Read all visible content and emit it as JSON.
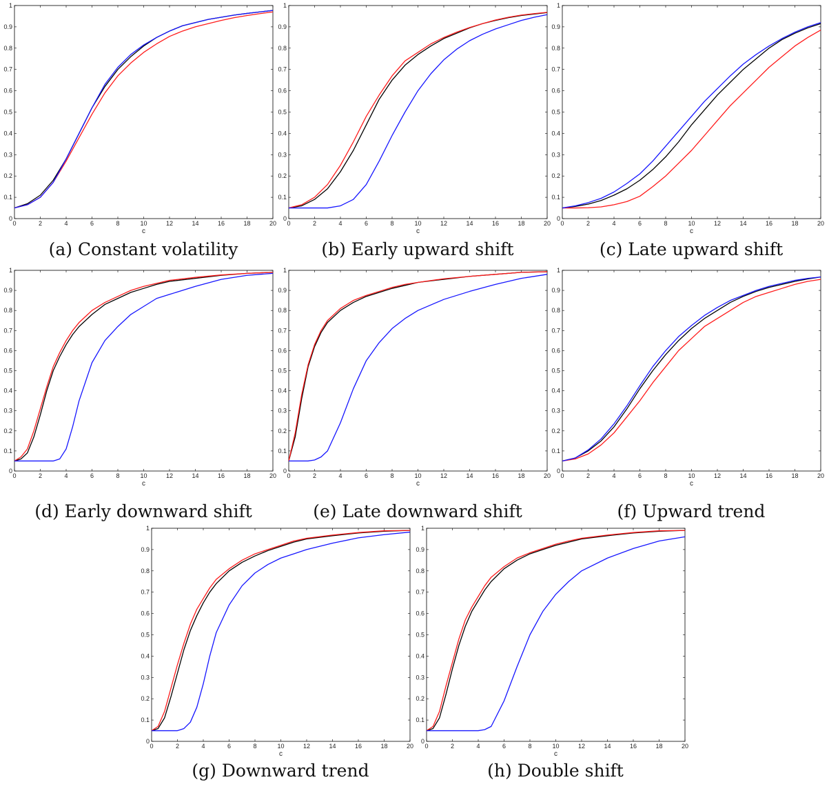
{
  "colors": {
    "black": "#000000",
    "red": "#ff1a1a",
    "blue": "#1515ff"
  },
  "chart_data": [
    {
      "type": "line",
      "panel": "a",
      "caption": "(a) Constant volatility",
      "xlabel": "c",
      "ylabel": "",
      "xlim": [
        0,
        20
      ],
      "ylim": [
        0,
        1
      ],
      "xticks": [
        "0",
        "2",
        "4",
        "6",
        "8",
        "10",
        "12",
        "14",
        "16",
        "18",
        "20"
      ],
      "yticks": [
        "0",
        "0.1",
        "0.2",
        "0.3",
        "0.4",
        "0.5",
        "0.6",
        "0.7",
        "0.8",
        "0.9",
        "1"
      ],
      "grid": false,
      "x": [
        0,
        1,
        2,
        3,
        4,
        5,
        6,
        7,
        8,
        9,
        10,
        11,
        12,
        13,
        14,
        15,
        16,
        17,
        18,
        19,
        20
      ],
      "series": [
        {
          "color": "black",
          "values": [
            0.05,
            0.07,
            0.11,
            0.18,
            0.28,
            0.4,
            0.52,
            0.62,
            0.7,
            0.76,
            0.81,
            0.85,
            0.88,
            0.905,
            0.92,
            0.935,
            0.945,
            0.955,
            0.963,
            0.97,
            0.977
          ]
        },
        {
          "color": "red",
          "values": [
            0.05,
            0.065,
            0.1,
            0.17,
            0.27,
            0.38,
            0.49,
            0.59,
            0.67,
            0.73,
            0.78,
            0.82,
            0.855,
            0.88,
            0.9,
            0.915,
            0.93,
            0.943,
            0.953,
            0.962,
            0.97
          ]
        },
        {
          "color": "blue",
          "values": [
            0.05,
            0.065,
            0.1,
            0.17,
            0.28,
            0.4,
            0.52,
            0.63,
            0.71,
            0.77,
            0.815,
            0.85,
            0.88,
            0.905,
            0.92,
            0.935,
            0.945,
            0.955,
            0.963,
            0.97,
            0.977
          ]
        }
      ]
    },
    {
      "type": "line",
      "panel": "b",
      "caption": "(b) Early upward shift",
      "xlabel": "c",
      "ylabel": "",
      "xlim": [
        0,
        20
      ],
      "ylim": [
        0,
        1
      ],
      "xticks": [
        "0",
        "2",
        "4",
        "6",
        "8",
        "10",
        "12",
        "14",
        "16",
        "18",
        "20"
      ],
      "yticks": [
        "0",
        "0.1",
        "0.2",
        "0.3",
        "0.4",
        "0.5",
        "0.6",
        "0.7",
        "0.8",
        "0.9",
        "1"
      ],
      "grid": false,
      "x": [
        0,
        1,
        2,
        3,
        4,
        5,
        6,
        7,
        8,
        9,
        10,
        11,
        12,
        13,
        14,
        15,
        16,
        17,
        18,
        19,
        20
      ],
      "series": [
        {
          "color": "black",
          "values": [
            0.05,
            0.06,
            0.09,
            0.14,
            0.22,
            0.32,
            0.44,
            0.56,
            0.65,
            0.72,
            0.77,
            0.81,
            0.845,
            0.87,
            0.895,
            0.915,
            0.93,
            0.943,
            0.953,
            0.96,
            0.967
          ]
        },
        {
          "color": "red",
          "values": [
            0.05,
            0.065,
            0.1,
            0.16,
            0.25,
            0.36,
            0.48,
            0.58,
            0.67,
            0.74,
            0.78,
            0.82,
            0.85,
            0.875,
            0.897,
            0.915,
            0.932,
            0.945,
            0.955,
            0.962,
            0.968
          ]
        },
        {
          "color": "blue",
          "values": [
            0.05,
            0.05,
            0.05,
            0.05,
            0.06,
            0.09,
            0.16,
            0.27,
            0.39,
            0.5,
            0.6,
            0.68,
            0.745,
            0.795,
            0.835,
            0.865,
            0.89,
            0.91,
            0.93,
            0.945,
            0.957
          ]
        }
      ]
    },
    {
      "type": "line",
      "panel": "c",
      "caption": "(c) Late upward shift",
      "xlabel": "c",
      "ylabel": "",
      "xlim": [
        0,
        20
      ],
      "ylim": [
        0,
        1
      ],
      "xticks": [
        "0",
        "2",
        "4",
        "6",
        "8",
        "10",
        "12",
        "14",
        "16",
        "18",
        "20"
      ],
      "yticks": [
        "0",
        "0.1",
        "0.2",
        "0.3",
        "0.4",
        "0.5",
        "0.6",
        "0.7",
        "0.8",
        "0.9",
        "1"
      ],
      "grid": false,
      "x": [
        0,
        1,
        2,
        3,
        4,
        5,
        6,
        7,
        8,
        9,
        10,
        11,
        12,
        13,
        14,
        15,
        16,
        17,
        18,
        19,
        20
      ],
      "series": [
        {
          "color": "black",
          "values": [
            0.05,
            0.057,
            0.068,
            0.085,
            0.11,
            0.14,
            0.18,
            0.23,
            0.29,
            0.36,
            0.44,
            0.51,
            0.58,
            0.64,
            0.7,
            0.75,
            0.8,
            0.84,
            0.87,
            0.895,
            0.915
          ]
        },
        {
          "color": "red",
          "values": [
            0.05,
            0.05,
            0.051,
            0.055,
            0.065,
            0.08,
            0.105,
            0.15,
            0.2,
            0.26,
            0.32,
            0.39,
            0.46,
            0.53,
            0.59,
            0.65,
            0.71,
            0.76,
            0.81,
            0.85,
            0.885
          ]
        },
        {
          "color": "blue",
          "values": [
            0.05,
            0.06,
            0.075,
            0.095,
            0.125,
            0.165,
            0.21,
            0.27,
            0.34,
            0.41,
            0.48,
            0.55,
            0.61,
            0.67,
            0.725,
            0.77,
            0.81,
            0.845,
            0.875,
            0.9,
            0.92
          ]
        }
      ]
    },
    {
      "type": "line",
      "panel": "d",
      "caption": "(d) Early downward shift",
      "xlabel": "c",
      "ylabel": "",
      "xlim": [
        0,
        20
      ],
      "ylim": [
        0,
        1
      ],
      "xticks": [
        "0",
        "2",
        "4",
        "6",
        "8",
        "10",
        "12",
        "14",
        "16",
        "18",
        "20"
      ],
      "yticks": [
        "0",
        "0.1",
        "0.2",
        "0.3",
        "0.4",
        "0.5",
        "0.6",
        "0.7",
        "0.8",
        "0.9",
        "1"
      ],
      "grid": false,
      "x": [
        0,
        0.5,
        1,
        1.5,
        2,
        2.5,
        3,
        3.5,
        4,
        4.5,
        5,
        6,
        7,
        8,
        9,
        10,
        11,
        12,
        14,
        16,
        18,
        20
      ],
      "series": [
        {
          "color": "black",
          "values": [
            0.05,
            0.06,
            0.09,
            0.17,
            0.28,
            0.4,
            0.5,
            0.57,
            0.63,
            0.68,
            0.72,
            0.78,
            0.83,
            0.86,
            0.89,
            0.91,
            0.93,
            0.945,
            0.96,
            0.975,
            0.985,
            0.99
          ]
        },
        {
          "color": "red",
          "values": [
            0.05,
            0.07,
            0.11,
            0.2,
            0.31,
            0.42,
            0.52,
            0.59,
            0.65,
            0.7,
            0.74,
            0.8,
            0.84,
            0.87,
            0.9,
            0.92,
            0.935,
            0.95,
            0.965,
            0.977,
            0.985,
            0.99
          ]
        },
        {
          "color": "blue",
          "values": [
            0.05,
            0.05,
            0.05,
            0.05,
            0.05,
            0.05,
            0.05,
            0.06,
            0.11,
            0.22,
            0.35,
            0.54,
            0.65,
            0.72,
            0.78,
            0.82,
            0.86,
            0.88,
            0.92,
            0.955,
            0.975,
            0.985
          ]
        }
      ]
    },
    {
      "type": "line",
      "panel": "e",
      "caption": "(e) Late downward shift",
      "xlabel": "c",
      "ylabel": "",
      "xlim": [
        0,
        20
      ],
      "ylim": [
        0,
        1
      ],
      "xticks": [
        "0",
        "2",
        "4",
        "6",
        "8",
        "10",
        "12",
        "14",
        "16",
        "18",
        "20"
      ],
      "yticks": [
        "0",
        "0.1",
        "0.2",
        "0.3",
        "0.4",
        "0.5",
        "0.6",
        "0.7",
        "0.8",
        "0.9",
        "1"
      ],
      "grid": false,
      "x": [
        0,
        0.5,
        1,
        1.5,
        2,
        2.5,
        3,
        4,
        5,
        6,
        7,
        8,
        9,
        10,
        12,
        14,
        16,
        18,
        20
      ],
      "series": [
        {
          "color": "black",
          "values": [
            0.05,
            0.17,
            0.36,
            0.52,
            0.62,
            0.69,
            0.74,
            0.8,
            0.84,
            0.87,
            0.89,
            0.91,
            0.925,
            0.94,
            0.955,
            0.97,
            0.98,
            0.99,
            0.993
          ]
        },
        {
          "color": "red",
          "values": [
            0.05,
            0.19,
            0.38,
            0.53,
            0.63,
            0.7,
            0.75,
            0.81,
            0.85,
            0.875,
            0.895,
            0.915,
            0.93,
            0.94,
            0.958,
            0.97,
            0.98,
            0.99,
            0.993
          ]
        },
        {
          "color": "blue",
          "values": [
            0.05,
            0.05,
            0.05,
            0.05,
            0.055,
            0.07,
            0.1,
            0.24,
            0.41,
            0.55,
            0.64,
            0.71,
            0.76,
            0.8,
            0.855,
            0.895,
            0.93,
            0.96,
            0.98
          ]
        }
      ]
    },
    {
      "type": "line",
      "panel": "f",
      "caption": "(f) Upward trend",
      "xlabel": "c",
      "ylabel": "",
      "xlim": [
        0,
        20
      ],
      "ylim": [
        0,
        1
      ],
      "xticks": [
        "0",
        "2",
        "4",
        "6",
        "8",
        "10",
        "12",
        "14",
        "16",
        "18",
        "20"
      ],
      "yticks": [
        "0",
        "0.1",
        "0.2",
        "0.3",
        "0.4",
        "0.5",
        "0.6",
        "0.7",
        "0.8",
        "0.9",
        "1"
      ],
      "grid": false,
      "x": [
        0,
        1,
        2,
        3,
        4,
        5,
        6,
        7,
        8,
        9,
        10,
        11,
        12,
        13,
        14,
        15,
        16,
        17,
        18,
        19,
        20
      ],
      "series": [
        {
          "color": "black",
          "values": [
            0.05,
            0.065,
            0.1,
            0.15,
            0.22,
            0.31,
            0.41,
            0.5,
            0.58,
            0.65,
            0.71,
            0.76,
            0.8,
            0.84,
            0.87,
            0.895,
            0.915,
            0.93,
            0.945,
            0.957,
            0.967
          ]
        },
        {
          "color": "red",
          "values": [
            0.05,
            0.06,
            0.085,
            0.13,
            0.19,
            0.27,
            0.35,
            0.44,
            0.52,
            0.6,
            0.66,
            0.72,
            0.76,
            0.8,
            0.84,
            0.87,
            0.89,
            0.91,
            0.93,
            0.945,
            0.955
          ]
        },
        {
          "color": "blue",
          "values": [
            0.05,
            0.065,
            0.105,
            0.16,
            0.235,
            0.325,
            0.425,
            0.52,
            0.6,
            0.67,
            0.725,
            0.775,
            0.815,
            0.85,
            0.875,
            0.9,
            0.92,
            0.935,
            0.95,
            0.96,
            0.967
          ]
        }
      ]
    },
    {
      "type": "line",
      "panel": "g",
      "caption": "(g) Downward trend",
      "xlabel": "c",
      "ylabel": "",
      "xlim": [
        0,
        20
      ],
      "ylim": [
        0,
        1
      ],
      "xticks": [
        "0",
        "2",
        "4",
        "6",
        "8",
        "10",
        "12",
        "14",
        "16",
        "18",
        "20"
      ],
      "yticks": [
        "0",
        "0.1",
        "0.2",
        "0.3",
        "0.4",
        "0.5",
        "0.6",
        "0.7",
        "0.8",
        "0.9",
        "1"
      ],
      "grid": false,
      "x": [
        0,
        0.5,
        1,
        1.5,
        2,
        2.5,
        3,
        3.5,
        4,
        4.5,
        5,
        6,
        7,
        8,
        9,
        10,
        11,
        12,
        14,
        16,
        18,
        20
      ],
      "series": [
        {
          "color": "black",
          "values": [
            0.05,
            0.06,
            0.11,
            0.21,
            0.32,
            0.43,
            0.52,
            0.59,
            0.65,
            0.7,
            0.74,
            0.8,
            0.84,
            0.87,
            0.895,
            0.915,
            0.935,
            0.95,
            0.965,
            0.978,
            0.986,
            0.99
          ]
        },
        {
          "color": "red",
          "values": [
            0.05,
            0.07,
            0.14,
            0.25,
            0.36,
            0.46,
            0.55,
            0.62,
            0.67,
            0.72,
            0.76,
            0.81,
            0.85,
            0.88,
            0.9,
            0.92,
            0.94,
            0.953,
            0.968,
            0.98,
            0.988,
            0.99
          ]
        },
        {
          "color": "blue",
          "values": [
            0.05,
            0.05,
            0.05,
            0.05,
            0.05,
            0.06,
            0.09,
            0.16,
            0.27,
            0.4,
            0.51,
            0.64,
            0.73,
            0.79,
            0.83,
            0.86,
            0.88,
            0.9,
            0.93,
            0.955,
            0.97,
            0.982
          ]
        }
      ]
    },
    {
      "type": "line",
      "panel": "h",
      "caption": "(h) Double shift",
      "xlabel": "c",
      "ylabel": "",
      "xlim": [
        0,
        20
      ],
      "ylim": [
        0,
        1
      ],
      "xticks": [
        "0",
        "2",
        "4",
        "6",
        "8",
        "10",
        "12",
        "14",
        "16",
        "18",
        "20"
      ],
      "yticks": [
        "0",
        "0.1",
        "0.2",
        "0.3",
        "0.4",
        "0.5",
        "0.6",
        "0.7",
        "0.8",
        "0.9",
        "1"
      ],
      "grid": false,
      "x": [
        0,
        0.5,
        1,
        1.5,
        2,
        2.5,
        3,
        3.5,
        4,
        4.5,
        5,
        6,
        7,
        8,
        9,
        10,
        11,
        12,
        14,
        16,
        18,
        20
      ],
      "series": [
        {
          "color": "black",
          "values": [
            0.05,
            0.06,
            0.11,
            0.22,
            0.34,
            0.45,
            0.54,
            0.61,
            0.66,
            0.71,
            0.75,
            0.81,
            0.85,
            0.88,
            0.9,
            0.92,
            0.935,
            0.95,
            0.965,
            0.978,
            0.986,
            0.99
          ]
        },
        {
          "color": "red",
          "values": [
            0.05,
            0.07,
            0.14,
            0.26,
            0.37,
            0.48,
            0.57,
            0.63,
            0.68,
            0.73,
            0.77,
            0.82,
            0.86,
            0.885,
            0.905,
            0.925,
            0.94,
            0.953,
            0.968,
            0.98,
            0.988,
            0.99
          ]
        },
        {
          "color": "blue",
          "values": [
            0.05,
            0.05,
            0.05,
            0.05,
            0.05,
            0.05,
            0.05,
            0.05,
            0.05,
            0.055,
            0.07,
            0.19,
            0.35,
            0.5,
            0.61,
            0.69,
            0.75,
            0.8,
            0.86,
            0.905,
            0.94,
            0.96
          ]
        }
      ]
    }
  ]
}
